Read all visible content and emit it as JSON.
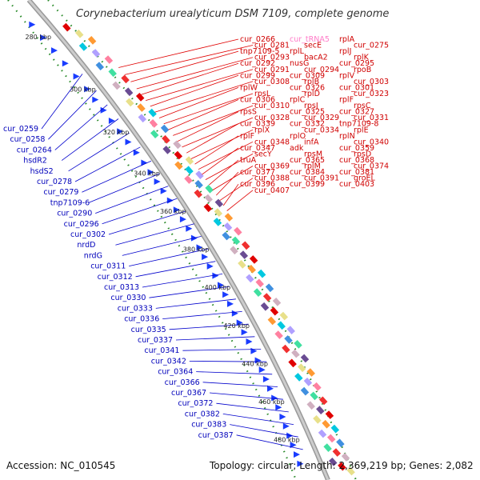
{
  "title": "Corynebacterium urealyticum DSM 7109, complete genome",
  "accession": "Accession: NC_010545",
  "summary": "Topology: circular; Length: 2,369,219 bp; Genes: 2,082",
  "ticks": [
    "280 kbp",
    "300 kbp",
    "320 kbp",
    "340 kbp",
    "360 kbp",
    "380 kbp",
    "400 kbp",
    "420 kbp",
    "440 kbp",
    "460 kbp",
    "480 kbp"
  ],
  "right_labels": [
    "cur_0266",
    "cur_tRNA5",
    "rplA",
    "cur_0281",
    "secE",
    "cur_0275",
    "tnp7109-5",
    "rplL",
    "rplJ",
    "cur_0293",
    "bacA2",
    "rplK",
    "cur_0292",
    "nusG",
    "cur_0295",
    "cur_0291",
    "cur_0294",
    "rpoB",
    "cur_0299",
    "cur_0309",
    "rplV",
    "cur_0308",
    "rplB",
    "cur_0303",
    "rplW",
    "cur_0326",
    "cur_0301",
    "rpsL",
    "rplD",
    "cur_0323",
    "cur_0306",
    "rplC",
    "rplF",
    "cur_0310",
    "rpsJ",
    "rpsC",
    "rpsS",
    "cur_0325",
    "cur_0327",
    "cur_0328",
    "cur_0329",
    "cur_0331",
    "cur_0339",
    "cur_0332",
    "tnp7109-8",
    "rplX",
    "cur_0334",
    "rplE",
    "rplF",
    "rplO",
    "rplN",
    "cur_0348",
    "infA",
    "cur_0340",
    "cur_0347",
    "adk",
    "cur_0359",
    "secY",
    "rpsM",
    "rpsD",
    "truA",
    "cur_0365",
    "cur_0368",
    "cur_0369",
    "rplM",
    "cur_0374",
    "cur_0377",
    "cur_0384",
    "cur_0381",
    "cur_0388",
    "cur_0391",
    "groEL",
    "cur_0396",
    "cur_0399",
    "cur_0403",
    "cur_0407"
  ],
  "left_labels": [
    "cur_0259",
    "cur_0258",
    "cur_0264",
    "hsdR2",
    "hsdS2",
    "cur_0278",
    "cur_0279",
    "tnp7109-6",
    "cur_0290",
    "cur_0296",
    "cur_0302",
    "nrdD",
    "nrdG",
    "cur_0311",
    "cur_0312",
    "cur_0313",
    "cur_0330",
    "cur_0333",
    "cur_0336",
    "cur_0335",
    "cur_0337",
    "cur_0341",
    "cur_0342",
    "cur_0364",
    "cur_0366",
    "cur_0367",
    "cur_0372",
    "cur_0382",
    "cur_0383",
    "cur_0387"
  ]
}
